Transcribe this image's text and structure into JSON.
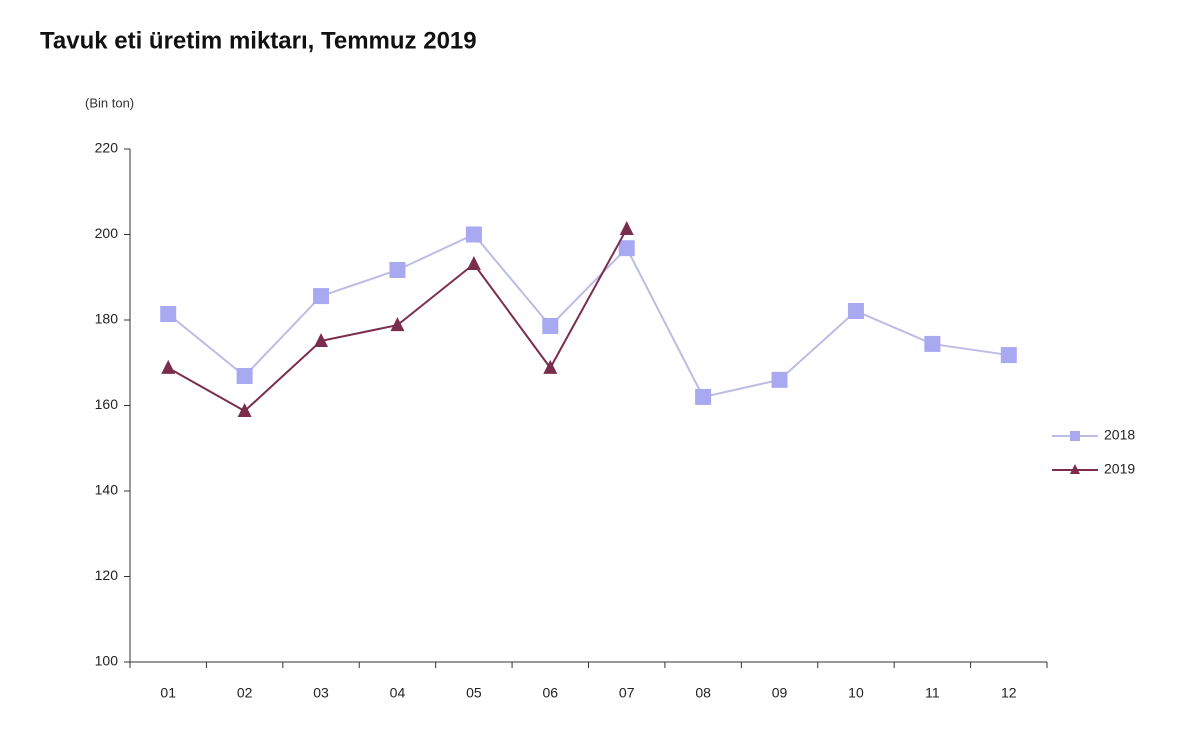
{
  "chart_data": {
    "type": "line",
    "title": "Tavuk eti üretim miktarı, Temmuz 2019",
    "subtitle": "(Bin ton)",
    "categories": [
      "01",
      "02",
      "03",
      "04",
      "05",
      "06",
      "07",
      "08",
      "09",
      "10",
      "11",
      "12"
    ],
    "series": [
      {
        "name": "2018",
        "color": "#a9a9f2",
        "line_color": "#bcbce4",
        "marker": "square",
        "values": [
          181.4,
          166.9,
          185.6,
          191.7,
          200,
          178.6,
          196.8,
          162,
          166,
          182.1,
          174.4,
          171.8
        ]
      },
      {
        "name": "2019",
        "color": "#7b2d4e",
        "line_color": "#7b2d4e",
        "marker": "triangle",
        "values": [
          168.8,
          158.7,
          175.1,
          178.8,
          193.1,
          168.8,
          201.3,
          null,
          null,
          null,
          null,
          null
        ]
      }
    ],
    "ylim": [
      100,
      220
    ],
    "yticks": [
      100,
      120,
      140,
      160,
      180,
      200,
      220
    ],
    "grid": false,
    "legend": "right"
  }
}
